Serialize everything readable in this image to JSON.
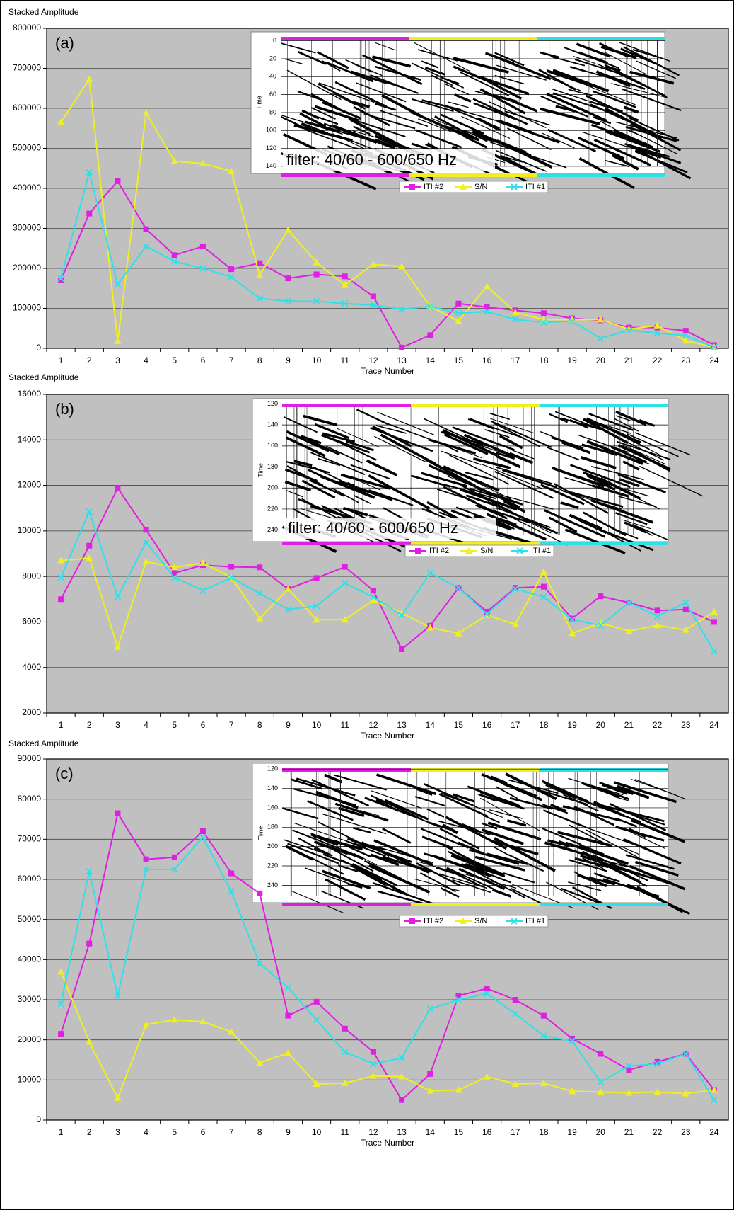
{
  "chart_data": [
    {
      "type": "line",
      "annotation": "(a)",
      "ylabel": "Stacked Amplitude",
      "xlabel": "Trace Number",
      "categories": [
        "1",
        "2",
        "3",
        "4",
        "5",
        "6",
        "7",
        "8",
        "9",
        "10",
        "11",
        "12",
        "13",
        "14",
        "15",
        "16",
        "17",
        "18",
        "19",
        "20",
        "21",
        "22",
        "23",
        "24"
      ],
      "ylim": [
        0,
        800000
      ],
      "yticks": [
        0,
        100000,
        200000,
        300000,
        400000,
        500000,
        600000,
        700000,
        800000
      ],
      "grid": true,
      "series": [
        {
          "name": "ITI #2",
          "color": "#e020e0",
          "marker": "square",
          "values": [
            170000,
            337000,
            418000,
            298000,
            233000,
            255000,
            198000,
            213000,
            175000,
            185000,
            180000,
            130000,
            2000,
            33000,
            112000,
            103000,
            95000,
            88000,
            75000,
            70000,
            52000,
            52000,
            44000,
            8000
          ]
        },
        {
          "name": "S/N",
          "color": "#f0f020",
          "marker": "triangle",
          "values": [
            565000,
            673000,
            18000,
            588000,
            468000,
            462000,
            443000,
            183000,
            296000,
            215000,
            158000,
            210000,
            205000,
            105000,
            68000,
            155000,
            90000,
            72000,
            72000,
            72000,
            48000,
            57000,
            19000,
            3000
          ]
        },
        {
          "name": "ITI #1",
          "color": "#30e0e8",
          "marker": "x",
          "values": [
            175000,
            440000,
            160000,
            255000,
            217000,
            200000,
            178000,
            125000,
            118000,
            118000,
            112000,
            108000,
            98000,
            105000,
            88000,
            92000,
            72000,
            65000,
            68000,
            25000,
            45000,
            38000,
            32000,
            3000
          ]
        }
      ],
      "inset": {
        "ylabel": "Time",
        "ylim": [
          -10,
          148
        ],
        "yticks": [
          0,
          20,
          40,
          60,
          80,
          100,
          120,
          140
        ],
        "label": "filter: 40/60  - 600/650 Hz"
      }
    },
    {
      "type": "line",
      "annotation": "(b)",
      "ylabel": "Stacked Amplitude",
      "xlabel": "Trace Number",
      "categories": [
        "1",
        "2",
        "3",
        "4",
        "5",
        "6",
        "7",
        "8",
        "9",
        "10",
        "11",
        "12",
        "13",
        "14",
        "15",
        "16",
        "17",
        "18",
        "19",
        "20",
        "21",
        "22",
        "23",
        "24"
      ],
      "ylim": [
        2000,
        16000
      ],
      "yticks": [
        2000,
        4000,
        6000,
        8000,
        10000,
        12000,
        14000,
        16000
      ],
      "grid": true,
      "series": [
        {
          "name": "ITI #2",
          "color": "#e020e0",
          "marker": "square",
          "values": [
            7000,
            9350,
            11880,
            10050,
            8150,
            8500,
            8420,
            8400,
            7450,
            7930,
            8420,
            7380,
            4800,
            5830,
            7500,
            6450,
            7500,
            7550,
            6150,
            7130,
            6850,
            6500,
            6550,
            6000
          ]
        },
        {
          "name": "S/N",
          "color": "#f0f020",
          "marker": "triangle",
          "values": [
            8700,
            8800,
            4900,
            8650,
            8400,
            8600,
            7950,
            6150,
            7450,
            6100,
            6100,
            6950,
            6400,
            5750,
            5500,
            6300,
            5900,
            8200,
            5500,
            5950,
            5600,
            5850,
            5650,
            6450
          ]
        },
        {
          "name": "ITI #1",
          "color": "#30e0e8",
          "marker": "x",
          "values": [
            7950,
            10850,
            7100,
            9500,
            7950,
            7380,
            7950,
            7250,
            6550,
            6700,
            7700,
            7100,
            6300,
            8150,
            7500,
            6350,
            7450,
            7100,
            6100,
            5850,
            6850,
            6250,
            6850,
            4700
          ]
        }
      ],
      "inset": {
        "ylabel": "Time",
        "ylim": [
          115,
          251
        ],
        "yticks": [
          120,
          140,
          160,
          180,
          200,
          220,
          240
        ],
        "label": "filter: 40/60  - 600/650 Hz"
      }
    },
    {
      "type": "line",
      "annotation": "(c)",
      "ylabel": "Stacked Amplitude",
      "xlabel": "Trace Number",
      "categories": [
        "1",
        "2",
        "3",
        "4",
        "5",
        "6",
        "7",
        "8",
        "9",
        "10",
        "11",
        "12",
        "13",
        "14",
        "15",
        "16",
        "17",
        "18",
        "19",
        "20",
        "21",
        "22",
        "23",
        "24"
      ],
      "ylim": [
        0,
        90000
      ],
      "yticks": [
        0,
        10000,
        20000,
        30000,
        40000,
        50000,
        60000,
        70000,
        80000,
        90000
      ],
      "grid": true,
      "series": [
        {
          "name": "ITI #2",
          "color": "#e020e0",
          "marker": "square",
          "values": [
            21500,
            44000,
            76500,
            65000,
            65500,
            72000,
            61500,
            56500,
            26000,
            29500,
            22800,
            17000,
            5000,
            11500,
            31000,
            32800,
            30000,
            26000,
            20300,
            16500,
            12500,
            14500,
            16500,
            7500
          ]
        },
        {
          "name": "S/N",
          "color": "#f0f020",
          "marker": "triangle",
          "values": [
            37000,
            19500,
            5500,
            23800,
            25000,
            24500,
            22000,
            14300,
            16700,
            9000,
            9200,
            11000,
            10800,
            7300,
            7500,
            10800,
            9000,
            9200,
            7200,
            7000,
            6800,
            7000,
            6600,
            7500
          ]
        },
        {
          "name": "ITI #1",
          "color": "#30e0e8",
          "marker": "x",
          "values": [
            29000,
            62000,
            31000,
            62500,
            62500,
            70500,
            57000,
            39000,
            33000,
            25000,
            17000,
            14000,
            15500,
            27700,
            30000,
            31500,
            26500,
            21000,
            19700,
            9500,
            13500,
            14000,
            16500,
            5000
          ]
        }
      ],
      "inset": {
        "ylabel": "Time",
        "ylim": [
          114,
          258
        ],
        "yticks": [
          120,
          140,
          160,
          180,
          200,
          220,
          240
        ]
      }
    }
  ]
}
